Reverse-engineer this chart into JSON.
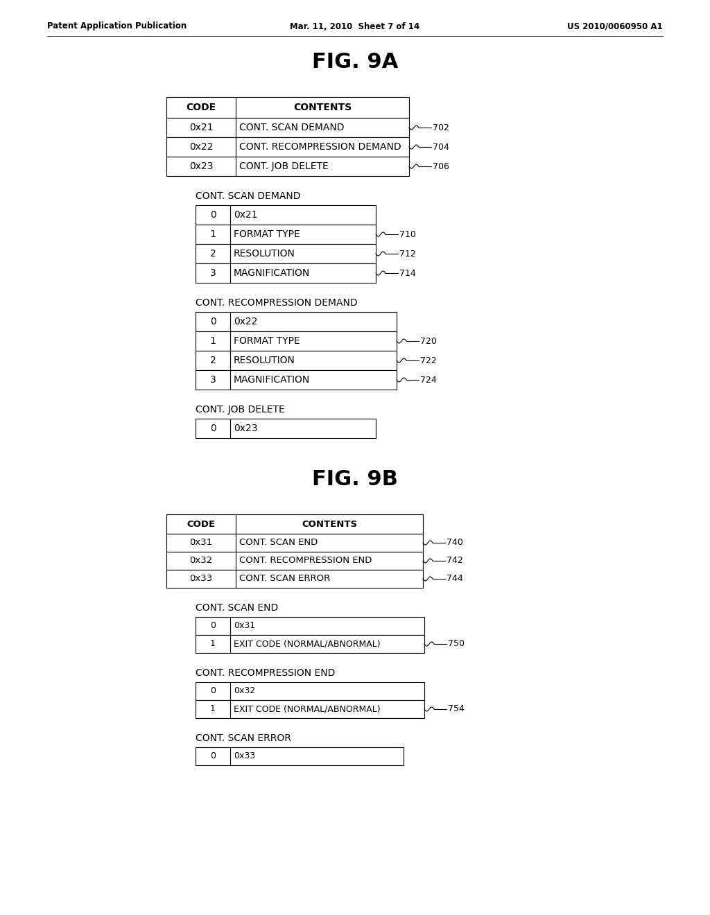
{
  "bg_color": "#ffffff",
  "header_text": {
    "left": "Patent Application Publication",
    "center": "Mar. 11, 2010  Sheet 7 of 14",
    "right": "US 2010/0060950 A1"
  },
  "fig9a_title": "FIG. 9A",
  "fig9b_title": "FIG. 9B",
  "main_table_9a": {
    "headers": [
      "CODE",
      "CONTENTS"
    ],
    "rows": [
      [
        "0x21",
        "CONT. SCAN DEMAND"
      ],
      [
        "0x22",
        "CONT. RECOMPRESSION DEMAND"
      ],
      [
        "0x23",
        "CONT. JOB DELETE"
      ]
    ],
    "labels": [
      "702",
      "704",
      "706"
    ]
  },
  "scan_demand_table": {
    "title": "CONT. SCAN DEMAND",
    "rows": [
      [
        "0",
        "0x21"
      ],
      [
        "1",
        "FORMAT TYPE"
      ],
      [
        "2",
        "RESOLUTION"
      ],
      [
        "3",
        "MAGNIFICATION"
      ]
    ],
    "labels": [
      "",
      "710",
      "712",
      "714"
    ]
  },
  "recompression_demand_table": {
    "title": "CONT. RECOMPRESSION DEMAND",
    "rows": [
      [
        "0",
        "0x22"
      ],
      [
        "1",
        "FORMAT TYPE"
      ],
      [
        "2",
        "RESOLUTION"
      ],
      [
        "3",
        "MAGNIFICATION"
      ]
    ],
    "labels": [
      "",
      "720",
      "722",
      "724"
    ]
  },
  "job_delete_table": {
    "title": "CONT. JOB DELETE",
    "rows": [
      [
        "0",
        "0x23"
      ]
    ],
    "labels": [
      ""
    ]
  },
  "main_table_9b": {
    "headers": [
      "CODE",
      "CONTENTS"
    ],
    "rows": [
      [
        "0x31",
        "CONT. SCAN END"
      ],
      [
        "0x32",
        "CONT. RECOMPRESSION END"
      ],
      [
        "0x33",
        "CONT. SCAN ERROR"
      ]
    ],
    "labels": [
      "740",
      "742",
      "744"
    ]
  },
  "scan_end_table": {
    "title": "CONT. SCAN END",
    "rows": [
      [
        "0",
        "0x31"
      ],
      [
        "1",
        "EXIT CODE (NORMAL/ABNORMAL)"
      ]
    ],
    "labels": [
      "",
      "750"
    ]
  },
  "recompression_end_table": {
    "title": "CONT. RECOMPRESSION END",
    "rows": [
      [
        "0",
        "0x32"
      ],
      [
        "1",
        "EXIT CODE (NORMAL/ABNORMAL)"
      ]
    ],
    "labels": [
      "",
      "754"
    ]
  },
  "scan_error_table": {
    "title": "CONT. SCAN ERROR",
    "rows": [
      [
        "0",
        "0x33"
      ]
    ],
    "labels": [
      ""
    ]
  }
}
